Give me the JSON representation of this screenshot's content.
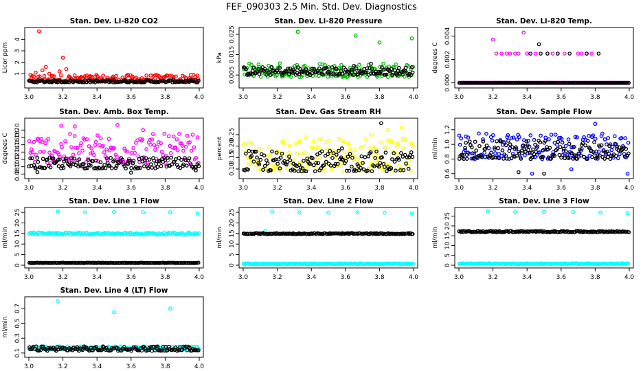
{
  "figure": {
    "title": "FEF_090303  2.5 Min. Std. Dev. Diagnostics"
  },
  "chart_data": [
    {
      "type": "scatter",
      "title": "Stan. Dev. Li-820 CO2",
      "xlabel": "",
      "ylabel": "Licor ppm",
      "xlim": [
        3.0,
        4.0
      ],
      "ylim": [
        0.0,
        4.8
      ],
      "xticks": [
        3.0,
        3.2,
        3.4,
        3.6,
        3.8,
        4.0
      ],
      "xtick_labels": [
        "3.0",
        "3.2",
        "3.4",
        "3.6",
        "3.8",
        "4.0"
      ],
      "yticks": [
        1,
        2,
        3,
        4
      ],
      "ytick_labels": [
        "1",
        "2",
        "3",
        "4"
      ],
      "series": [
        {
          "color": "#ff0000",
          "x": [
            3.0,
            3.04,
            3.06,
            3.08,
            3.1,
            3.12,
            3.14,
            3.18,
            3.2,
            3.22,
            3.24,
            3.3,
            3.4,
            3.5,
            3.58,
            3.7,
            3.85,
            3.95
          ],
          "y": [
            0.4,
            1.1,
            4.7,
            1.3,
            1.6,
            1.0,
            0.8,
            1.2,
            2.4,
            1.4,
            0.7,
            0.6,
            0.5,
            0.6,
            0.9,
            0.5,
            0.7,
            0.9
          ],
          "band": [
            0.3,
            0.9
          ]
        },
        {
          "color": "#000000",
          "x": [],
          "y": [],
          "band": [
            0.25,
            0.45
          ]
        }
      ]
    },
    {
      "type": "scatter",
      "title": "Stan. Dev. Li-820 Pressure",
      "xlabel": "",
      "ylabel": "kPa",
      "xlim": [
        3.0,
        4.0
      ],
      "ylim": [
        0.0,
        0.027
      ],
      "xticks": [
        3.0,
        3.2,
        3.4,
        3.6,
        3.8,
        4.0
      ],
      "xtick_labels": [
        "3.0",
        "3.2",
        "3.4",
        "3.6",
        "3.8",
        "4.0"
      ],
      "yticks": [
        0.005,
        0.015,
        0.025
      ],
      "ytick_labels": [
        "0.005",
        "0.015",
        "0.025"
      ],
      "series": [
        {
          "color": "#00bb00",
          "x": [
            3.32,
            3.66,
            3.8,
            3.99
          ],
          "y": [
            0.0262,
            0.0244,
            0.021,
            0.023
          ],
          "band": [
            0.004,
            0.011
          ]
        },
        {
          "color": "#000000",
          "x": [
            3.65,
            3.75
          ],
          "y": [
            0.0095,
            0.0105
          ],
          "band": [
            0.005,
            0.009
          ]
        }
      ]
    },
    {
      "type": "scatter",
      "title": "Stan. Dev. Li-820 Temp.",
      "xlabel": "",
      "ylabel": "degrees C",
      "xlim": [
        3.0,
        4.0
      ],
      "ylim": [
        -0.0002,
        0.0045
      ],
      "xticks": [
        3.0,
        3.2,
        3.4,
        3.6,
        3.8,
        4.0
      ],
      "xtick_labels": [
        "3.0",
        "3.2",
        "3.4",
        "3.6",
        "3.8",
        "4.0"
      ],
      "yticks": [
        0.0,
        0.002,
        0.004
      ],
      "ytick_labels": [
        "0.000",
        "0.002",
        "0.004"
      ],
      "series": [
        {
          "color": "#ff00ff",
          "x": [
            3.2,
            3.38,
            3.22,
            3.25,
            3.28,
            3.3,
            3.33,
            3.35,
            3.4,
            3.45,
            3.52,
            3.55,
            3.58,
            3.62,
            3.7,
            3.72,
            3.75,
            3.78
          ],
          "y": [
            0.0037,
            0.0043,
            0.0025,
            0.0025,
            0.0025,
            0.0025,
            0.0025,
            0.0025,
            0.0025,
            0.0025,
            0.0025,
            0.0025,
            0.0025,
            0.0025,
            0.0025,
            0.0025,
            0.0025,
            0.0025
          ],
          "band": [
            0.0,
            0.0
          ]
        },
        {
          "color": "#000000",
          "x": [
            3.42,
            3.48,
            3.52,
            3.58,
            3.65,
            3.75,
            3.82,
            3.47
          ],
          "y": [
            0.0025,
            0.0025,
            0.0025,
            0.0025,
            0.0025,
            0.0025,
            0.0025,
            0.0033
          ],
          "band": [
            0.0,
            0.0
          ]
        }
      ]
    },
    {
      "type": "scatter",
      "title": "Stan. Dev. Amb. Box Temp.",
      "xlabel": "",
      "ylabel": "degrees C",
      "xlim": [
        3.0,
        4.0
      ],
      "ylim": [
        0.075,
        0.225
      ],
      "xticks": [
        3.0,
        3.2,
        3.4,
        3.6,
        3.8,
        4.0
      ],
      "xtick_labels": [
        "3.0",
        "3.2",
        "3.4",
        "3.6",
        "3.8",
        "4.0"
      ],
      "yticks": [
        0.08,
        0.1,
        0.12,
        0.14,
        0.16,
        0.18,
        0.2
      ],
      "ytick_labels": [
        "0.08",
        "0.10",
        "0.12",
        "0.14",
        "0.16",
        "0.18",
        "0.20"
      ],
      "series": [
        {
          "color": "#ff00ff",
          "x": [
            3.19,
            3.27,
            3.52,
            3.67
          ],
          "y": [
            0.212,
            0.21,
            0.214,
            0.2
          ],
          "band": [
            0.11,
            0.19
          ]
        },
        {
          "color": "#000000",
          "x": [
            3.05,
            3.6,
            3.98
          ],
          "y": [
            0.085,
            0.084,
            0.09
          ],
          "band": [
            0.095,
            0.125
          ]
        }
      ]
    },
    {
      "type": "scatter",
      "title": "Stan. Dev. Gas Stream RH",
      "xlabel": "",
      "ylabel": "percent",
      "xlim": [
        3.0,
        4.0
      ],
      "ylim": [
        0.07,
        0.31
      ],
      "xticks": [
        3.0,
        3.2,
        3.4,
        3.6,
        3.8,
        4.0
      ],
      "xtick_labels": [
        "3.0",
        "3.2",
        "3.4",
        "3.6",
        "3.8",
        "4.0"
      ],
      "yticks": [
        0.1,
        0.15,
        0.2,
        0.25
      ],
      "ytick_labels": [
        "0.10",
        "0.15",
        "0.20",
        "0.25"
      ],
      "series": [
        {
          "color": "#ffff00",
          "x": [
            3.75,
            3.85,
            3.93
          ],
          "y": [
            0.25,
            0.27,
            0.28
          ],
          "band": [
            0.09,
            0.24
          ]
        },
        {
          "color": "#000000",
          "x": [
            3.81,
            3.58,
            3.45
          ],
          "y": [
            0.3,
            0.19,
            0.17
          ],
          "band": [
            0.09,
            0.18
          ]
        }
      ]
    },
    {
      "type": "scatter",
      "title": "Stan. Dev. Sample Flow",
      "xlabel": "",
      "ylabel": "ml/min",
      "xlim": [
        3.0,
        4.0
      ],
      "ylim": [
        0.57,
        1.32
      ],
      "xticks": [
        3.0,
        3.2,
        3.4,
        3.6,
        3.8,
        4.0
      ],
      "xtick_labels": [
        "3.0",
        "3.2",
        "3.4",
        "3.6",
        "3.8",
        "4.0"
      ],
      "yticks": [
        0.6,
        0.8,
        1.0,
        1.2
      ],
      "ytick_labels": [
        "0.6",
        "0.8",
        "1.0",
        "1.2"
      ],
      "series": [
        {
          "color": "#0000ff",
          "x": [
            3.66,
            3.8,
            3.99,
            3.43
          ],
          "y": [
            0.66,
            1.28,
            0.6,
            0.6
          ],
          "band": [
            0.8,
            1.15
          ]
        },
        {
          "color": "#000000",
          "x": [
            3.35,
            3.5
          ],
          "y": [
            0.62,
            0.6
          ],
          "band": [
            0.8,
            1.05
          ]
        }
      ]
    },
    {
      "type": "scatter",
      "title": "Stan. Dev. Line 1 Flow",
      "xlabel": "",
      "ylabel": "ml/min",
      "xlim": [
        3.0,
        4.0
      ],
      "ylim": [
        0.0,
        26.0
      ],
      "xticks": [
        3.0,
        3.2,
        3.4,
        3.6,
        3.8,
        4.0
      ],
      "xtick_labels": [
        "3.0",
        "3.2",
        "3.4",
        "3.6",
        "3.8",
        "4.0"
      ],
      "yticks": [
        0,
        5,
        10,
        15,
        20,
        25
      ],
      "ytick_labels": [
        "0",
        "5",
        "10",
        "15",
        "20",
        "25"
      ],
      "series": [
        {
          "color": "#00ffff",
          "x": [
            3.17,
            3.33,
            3.5,
            3.67,
            3.83,
            3.99
          ],
          "y": [
            25.5,
            25.0,
            25.2,
            25.0,
            25.0,
            24.5
          ],
          "band": [
            14.5,
            15.5
          ]
        },
        {
          "color": "#000000",
          "x": [],
          "y": [],
          "band": [
            1.0,
            1.2
          ]
        }
      ]
    },
    {
      "type": "scatter",
      "title": "Stan. Dev. Line 2 Flow",
      "xlabel": "",
      "ylabel": "ml/min",
      "xlim": [
        3.0,
        4.0
      ],
      "ylim": [
        0.0,
        26.0
      ],
      "xticks": [
        3.0,
        3.2,
        3.4,
        3.6,
        3.8,
        4.0
      ],
      "xtick_labels": [
        "3.0",
        "3.2",
        "3.4",
        "3.6",
        "3.8",
        "4.0"
      ],
      "yticks": [
        0,
        5,
        10,
        15,
        20,
        25
      ],
      "ytick_labels": [
        "0",
        "5",
        "10",
        "15",
        "20",
        "25"
      ],
      "series": [
        {
          "color": "#00ffff",
          "x": [
            3.17,
            3.33,
            3.5,
            3.67,
            3.83,
            3.99,
            3.13
          ],
          "y": [
            25.5,
            25.0,
            24.8,
            25.0,
            24.8,
            24.5,
            16.2
          ],
          "band": [
            0.5,
            0.9
          ]
        },
        {
          "color": "#000000",
          "x": [],
          "y": [],
          "band": [
            14.7,
            15.2
          ]
        }
      ]
    },
    {
      "type": "scatter",
      "title": "Stan. Dev. Line 3 Flow",
      "xlabel": "",
      "ylabel": "ml/min",
      "xlim": [
        3.0,
        4.0
      ],
      "ylim": [
        0.0,
        28.0
      ],
      "xticks": [
        3.0,
        3.2,
        3.4,
        3.6,
        3.8,
        4.0
      ],
      "xtick_labels": [
        "3.0",
        "3.2",
        "3.4",
        "3.6",
        "3.8",
        "4.0"
      ],
      "yticks": [
        0,
        5,
        10,
        15,
        20,
        25
      ],
      "ytick_labels": [
        "0",
        "5",
        "10",
        "15",
        "20",
        "25"
      ],
      "series": [
        {
          "color": "#00ffff",
          "x": [
            3.17,
            3.33,
            3.5,
            3.67,
            3.83,
            3.99
          ],
          "y": [
            27.5,
            27.0,
            27.2,
            27.0,
            26.8,
            26.5
          ],
          "band": [
            0.6,
            1.0
          ]
        },
        {
          "color": "#000000",
          "x": [],
          "y": [],
          "band": [
            16.8,
            17.5
          ]
        }
      ]
    },
    {
      "type": "scatter",
      "title": "Stan. Dev. Line 4 (LT) Flow",
      "xlabel": "",
      "ylabel": "ml/min",
      "xlim": [
        3.0,
        4.0
      ],
      "ylim": [
        0.08,
        0.82
      ],
      "xticks": [
        3.0,
        3.2,
        3.4,
        3.6,
        3.8,
        4.0
      ],
      "xtick_labels": [
        "3.0",
        "3.2",
        "3.4",
        "3.6",
        "3.8",
        "4.0"
      ],
      "yticks": [
        0.1,
        0.3,
        0.5,
        0.7
      ],
      "ytick_labels": [
        "0.1",
        "0.3",
        "0.5",
        "0.7"
      ],
      "series": [
        {
          "color": "#00ffff",
          "x": [
            3.17,
            3.5,
            3.83
          ],
          "y": [
            0.8,
            0.65,
            0.7
          ],
          "band": [
            0.15,
            0.19
          ]
        },
        {
          "color": "#000000",
          "x": [],
          "y": [],
          "band": [
            0.13,
            0.19
          ]
        }
      ]
    }
  ]
}
